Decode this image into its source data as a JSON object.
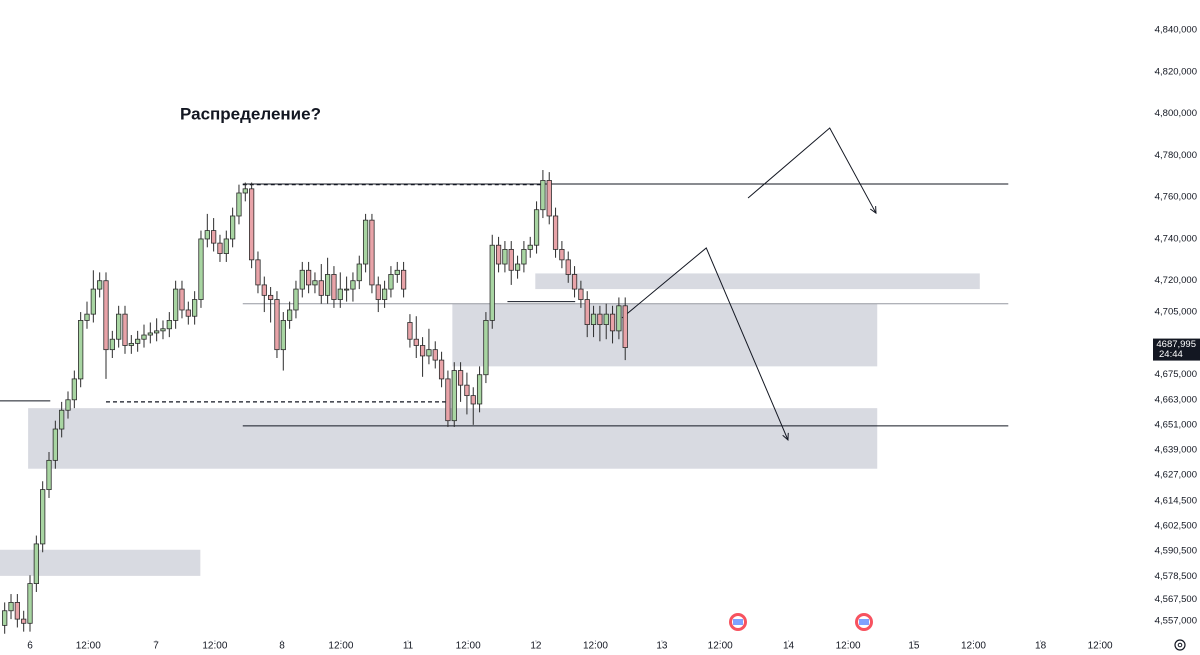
{
  "chart_data": {
    "type": "candlestick",
    "title": "Распределение?",
    "x": [
      -4,
      -3,
      -2,
      -1,
      0,
      1,
      2,
      3,
      4,
      5,
      6,
      7,
      8,
      9,
      10,
      11,
      12,
      13,
      14,
      15,
      16,
      17,
      18,
      19,
      20,
      21,
      22,
      23,
      24,
      25,
      26,
      27,
      28,
      29,
      30,
      31,
      32,
      33,
      34,
      35,
      36,
      37,
      38,
      39,
      40,
      41,
      42,
      43,
      44,
      45,
      46,
      47,
      48,
      49,
      50,
      51,
      52,
      53,
      54,
      55,
      56,
      57,
      58,
      59,
      60,
      61,
      62,
      63,
      64,
      65,
      66,
      67,
      68,
      69,
      70,
      71,
      72,
      73,
      74,
      75,
      76,
      77,
      78,
      79,
      80,
      81,
      82,
      83,
      84,
      85,
      86,
      87,
      88,
      89,
      90,
      91,
      92,
      93,
      94
    ],
    "open": [
      4555,
      4562,
      4566,
      4558,
      4556,
      4575,
      4594,
      4620,
      4634,
      4649,
      4658,
      4663,
      4673,
      4701,
      4704,
      4716,
      4720,
      4687,
      4692,
      4704,
      4689,
      4690,
      4692,
      4694,
      4695,
      4696,
      4697,
      4701,
      4716,
      4706,
      4703,
      4711,
      4740,
      4744,
      4738,
      4733,
      4740,
      4751,
      4762,
      4764,
      4730,
      4718,
      4713,
      4711,
      4687,
      4701,
      4706,
      4716,
      4725,
      4718,
      4720,
      4713,
      4723,
      4711,
      4716,
      4716,
      4720,
      4728,
      4749,
      4718,
      4711,
      4716,
      4723,
      4725,
      4700,
      4692,
      4689,
      4684,
      4687,
      4682,
      4673,
      4653,
      4677,
      4670,
      4665,
      4661,
      4675,
      4701,
      4737,
      4728,
      4735,
      4725,
      4728,
      4735,
      4737,
      4754,
      4768,
      4751,
      4735,
      4730,
      4723,
      4716,
      4711,
      4699,
      4704,
      4699,
      4704,
      4696,
      4708
    ],
    "high": [
      4566,
      4570,
      4570,
      4562,
      4579,
      4598,
      4624,
      4638,
      4653,
      4662,
      4667,
      4677,
      4705,
      4710,
      4725,
      4724,
      4724,
      4696,
      4708,
      4708,
      4694,
      4696,
      4699,
      4700,
      4702,
      4701,
      4705,
      4720,
      4720,
      4710,
      4715,
      4744,
      4752,
      4750,
      4742,
      4744,
      4755,
      4766,
      4767,
      4767,
      4734,
      4722,
      4717,
      4715,
      4705,
      4710,
      4720,
      4729,
      4729,
      4724,
      4728,
      4731,
      4727,
      4724,
      4722,
      4724,
      4732,
      4752,
      4752,
      4722,
      4720,
      4727,
      4729,
      4729,
      4704,
      4703,
      4693,
      4697,
      4691,
      4686,
      4677,
      4681,
      4681,
      4676,
      4669,
      4679,
      4705,
      4742,
      4741,
      4739,
      4739,
      4732,
      4739,
      4741,
      4758,
      4773,
      4772,
      4755,
      4739,
      4734,
      4727,
      4720,
      4715,
      4708,
      4708,
      4709,
      4708,
      4712,
      4712
    ],
    "low": [
      4551,
      4558,
      4554,
      4552,
      4552,
      4571,
      4590,
      4616,
      4630,
      4645,
      4654,
      4659,
      4669,
      4697,
      4700,
      4712,
      4673,
      4683,
      4688,
      4685,
      4685,
      4686,
      4688,
      4690,
      4691,
      4692,
      4693,
      4697,
      4702,
      4699,
      4699,
      4707,
      4736,
      4734,
      4729,
      4729,
      4736,
      4747,
      4758,
      4726,
      4714,
      4705,
      4700,
      4683,
      4677,
      4697,
      4702,
      4712,
      4714,
      4714,
      4709,
      4709,
      4707,
      4707,
      4710,
      4710,
      4716,
      4724,
      4714,
      4705,
      4707,
      4712,
      4719,
      4712,
      4688,
      4683,
      4674,
      4680,
      4678,
      4669,
      4650,
      4650,
      4662,
      4656,
      4651,
      4657,
      4671,
      4697,
      4724,
      4724,
      4718,
      4721,
      4724,
      4731,
      4733,
      4750,
      4747,
      4731,
      4726,
      4719,
      4712,
      4707,
      4693,
      4693,
      4691,
      4692,
      4690,
      4692,
      4682
    ],
    "close": [
      4562,
      4566,
      4558,
      4556,
      4575,
      4594,
      4620,
      4634,
      4649,
      4658,
      4663,
      4673,
      4701,
      4704,
      4716,
      4720,
      4687,
      4692,
      4704,
      4689,
      4690,
      4692,
      4694,
      4695,
      4696,
      4697,
      4701,
      4716,
      4706,
      4703,
      4711,
      4740,
      4744,
      4738,
      4733,
      4740,
      4751,
      4762,
      4764,
      4730,
      4718,
      4713,
      4711,
      4687,
      4701,
      4706,
      4716,
      4725,
      4718,
      4720,
      4713,
      4723,
      4711,
      4716,
      4716,
      4720,
      4728,
      4749,
      4718,
      4711,
      4716,
      4723,
      4725,
      4716,
      4692,
      4689,
      4684,
      4687,
      4682,
      4673,
      4653,
      4677,
      4670,
      4665,
      4661,
      4675,
      4701,
      4737,
      4728,
      4735,
      4725,
      4728,
      4735,
      4737,
      4754,
      4768,
      4751,
      4735,
      4730,
      4723,
      4716,
      4711,
      4699,
      4704,
      4699,
      4704,
      4696,
      4708,
      4688
    ],
    "up_color": "#a8d5a2",
    "down_color": "#e8a3a8",
    "outline_color": "#2b2b2b",
    "xlim": [
      -4.74,
      175.3
    ],
    "ylim": [
      4548,
      4854.4
    ],
    "yticks": [
      {
        "value": 4840,
        "label": "4,840,000"
      },
      {
        "value": 4820,
        "label": "4,820,000"
      },
      {
        "value": 4800,
        "label": "4,800,000"
      },
      {
        "value": 4780,
        "label": "4,780,000"
      },
      {
        "value": 4760,
        "label": "4,760,000"
      },
      {
        "value": 4740,
        "label": "4,740,000"
      },
      {
        "value": 4720,
        "label": "4,720,000"
      },
      {
        "value": 4705,
        "label": "4,705,000"
      },
      {
        "value": 4675,
        "label": "4,675,000"
      },
      {
        "value": 4663,
        "label": "4,663,000"
      },
      {
        "value": 4651,
        "label": "4,651,000"
      },
      {
        "value": 4639,
        "label": "4,639,000"
      },
      {
        "value": 4627,
        "label": "4,627,000"
      },
      {
        "value": 4614.5,
        "label": "4,614,500"
      },
      {
        "value": 4602.5,
        "label": "4,602,500"
      },
      {
        "value": 4590.5,
        "label": "4,590,500"
      },
      {
        "value": 4578.5,
        "label": "4,578,500"
      },
      {
        "value": 4567.5,
        "label": "4,567,500"
      },
      {
        "value": 4557,
        "label": "4,557,000"
      }
    ],
    "xticks": [
      {
        "value": 0,
        "label": "6"
      },
      {
        "value": 9.2,
        "label": "12:00"
      },
      {
        "value": 19.9,
        "label": "7"
      },
      {
        "value": 29.2,
        "label": "12:00"
      },
      {
        "value": 39.8,
        "label": "8"
      },
      {
        "value": 49.1,
        "label": "12:00"
      },
      {
        "value": 59.7,
        "label": "11"
      },
      {
        "value": 69.2,
        "label": "12:00"
      },
      {
        "value": 79.9,
        "label": "12"
      },
      {
        "value": 89.3,
        "label": "12:00"
      },
      {
        "value": 99.8,
        "label": "13"
      },
      {
        "value": 109,
        "label": "12:00"
      },
      {
        "value": 119.8,
        "label": "14"
      },
      {
        "value": 129.2,
        "label": "12:00"
      },
      {
        "value": 139.6,
        "label": "15"
      },
      {
        "value": 149,
        "label": "12:00"
      },
      {
        "value": 159.6,
        "label": "18"
      },
      {
        "value": 169,
        "label": "12:00"
      }
    ],
    "price_label": {
      "value": 4687.995,
      "label": "4687,995",
      "timer": "24:44"
    },
    "zones": [
      {
        "x": [
          -4.74,
          26.9
        ],
        "y": [
          4578.7,
          4591.2
        ],
        "color": "#d1d4dc"
      },
      {
        "x": [
          -0.3,
          133.8
        ],
        "y": [
          4630,
          4659
        ],
        "color": "#d1d4dc"
      },
      {
        "x": [
          66.7,
          133.8
        ],
        "y": [
          4679,
          4709
        ],
        "color": "#d1d4dc"
      },
      {
        "x": [
          79.8,
          150
        ],
        "y": [
          4716,
          4723.5
        ],
        "color": "#d1d4dc"
      }
    ],
    "lines": [
      {
        "x": [
          33.6,
          154.5
        ],
        "y": 4766.3,
        "dashed": false,
        "color": "#131722"
      },
      {
        "x": [
          33.6,
          154.5
        ],
        "y": 4709,
        "dashed": false,
        "color": "#9598a1"
      },
      {
        "x": [
          33.6,
          154.5
        ],
        "y": 4650.5,
        "dashed": false,
        "color": "#131722"
      },
      {
        "x": [
          -4.74,
          3.2
        ],
        "y": 4662.5,
        "dashed": false,
        "color": "#131722"
      },
      {
        "x": [
          33.6,
          80.6
        ],
        "y": 4766,
        "dashed": true,
        "color": "#131722"
      },
      {
        "x": [
          12,
          66
        ],
        "y": 4662,
        "dashed": true,
        "color": "#131722"
      },
      {
        "x": [
          75.4,
          86.1
        ],
        "y": 4710,
        "dashed": false,
        "color": "#131722"
      }
    ],
    "arrows": [
      {
        "x": [
          113.4,
          126.3,
          133.6
        ],
        "y": [
          4759.6,
          4793.1,
          4752.4
        ],
        "color": "#131722"
      },
      {
        "x": [
          93.5,
          106.8,
          119.7
        ],
        "y": [
          4702.2,
          4735.7,
          4643.8
        ],
        "color": "#131722"
      }
    ]
  }
}
